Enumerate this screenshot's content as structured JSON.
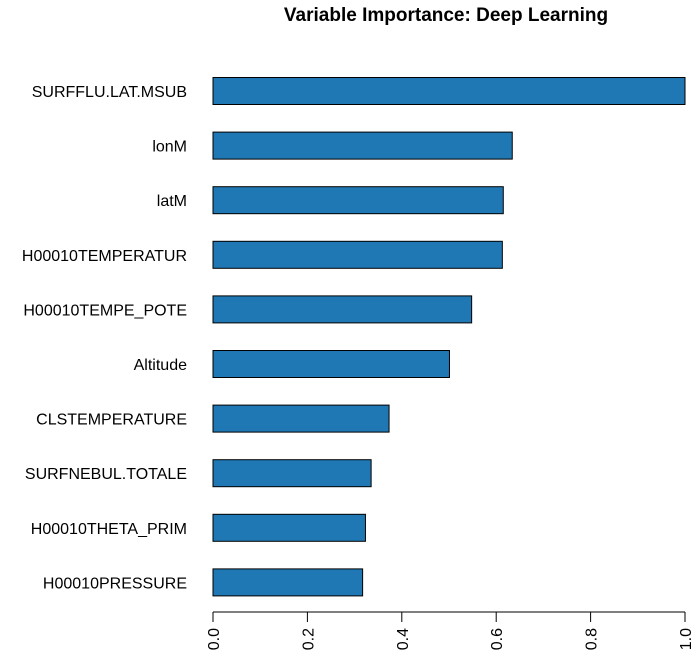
{
  "chart_data": {
    "type": "bar",
    "orientation": "horizontal",
    "title": "Variable Importance: Deep Learning",
    "categories": [
      "SURFFLU.LAT.MSUB",
      "lonM",
      "latM",
      "H00010TEMPERATUR",
      "H00010TEMPE_POTE",
      "Altitude",
      "CLSTEMPERATURE",
      "SURFNEBUL.TOTALE",
      "H00010THETA_PRIM",
      "H00010PRESSURE"
    ],
    "values": [
      1.0,
      0.634,
      0.615,
      0.613,
      0.548,
      0.501,
      0.373,
      0.335,
      0.323,
      0.317
    ],
    "xlim": [
      0,
      1.0
    ],
    "x_ticks": [
      "0.0",
      "0.2",
      "0.4",
      "0.6",
      "0.8",
      "1.0"
    ],
    "x_tick_values": [
      0,
      0.2,
      0.4,
      0.6,
      0.8,
      1.0
    ],
    "xlabel": "",
    "ylabel": "",
    "bar_color": "#1f78b4",
    "bar_border_color": "#000000",
    "grid": false,
    "legend": "none"
  }
}
